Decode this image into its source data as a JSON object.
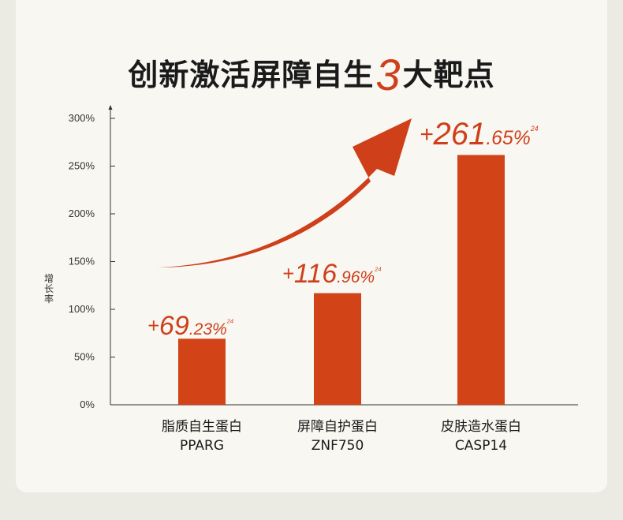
{
  "title": {
    "before": "创新激活屏障自生",
    "number": "3",
    "after": "大靶点"
  },
  "colors": {
    "accent": "#cf3f1a",
    "bar": "#d24418",
    "text": "#1a1a1a"
  },
  "chart_data": {
    "type": "bar",
    "title": "创新激活屏障自生3大靶点",
    "ylabel": "增长率",
    "xlabel": "",
    "ylim": [
      0,
      300
    ],
    "yticks": [
      "0%",
      "50%",
      "100%",
      "150%",
      "200%",
      "250%",
      "300%"
    ],
    "ytick_values": [
      0,
      50,
      100,
      150,
      200,
      250,
      300
    ],
    "categories": [
      {
        "line1": "脂质自生蛋白",
        "line2": "PPARG"
      },
      {
        "line1": "屏障自护蛋白",
        "line2": "ZNF750"
      },
      {
        "line1": "皮肤造水蛋白",
        "line2": "CASP14"
      }
    ],
    "values": [
      69.23,
      116.96,
      261.65
    ],
    "data_labels": [
      {
        "sign": "+",
        "int": "69",
        "dec": ".23%",
        "ref": "24"
      },
      {
        "sign": "+",
        "int": "116",
        "dec": ".96%",
        "ref": "24"
      },
      {
        "sign": "+",
        "int": "261",
        "dec": ".65%",
        "ref": "24"
      }
    ],
    "grid": false,
    "legend": "none",
    "annotation": "rising-arrow"
  }
}
